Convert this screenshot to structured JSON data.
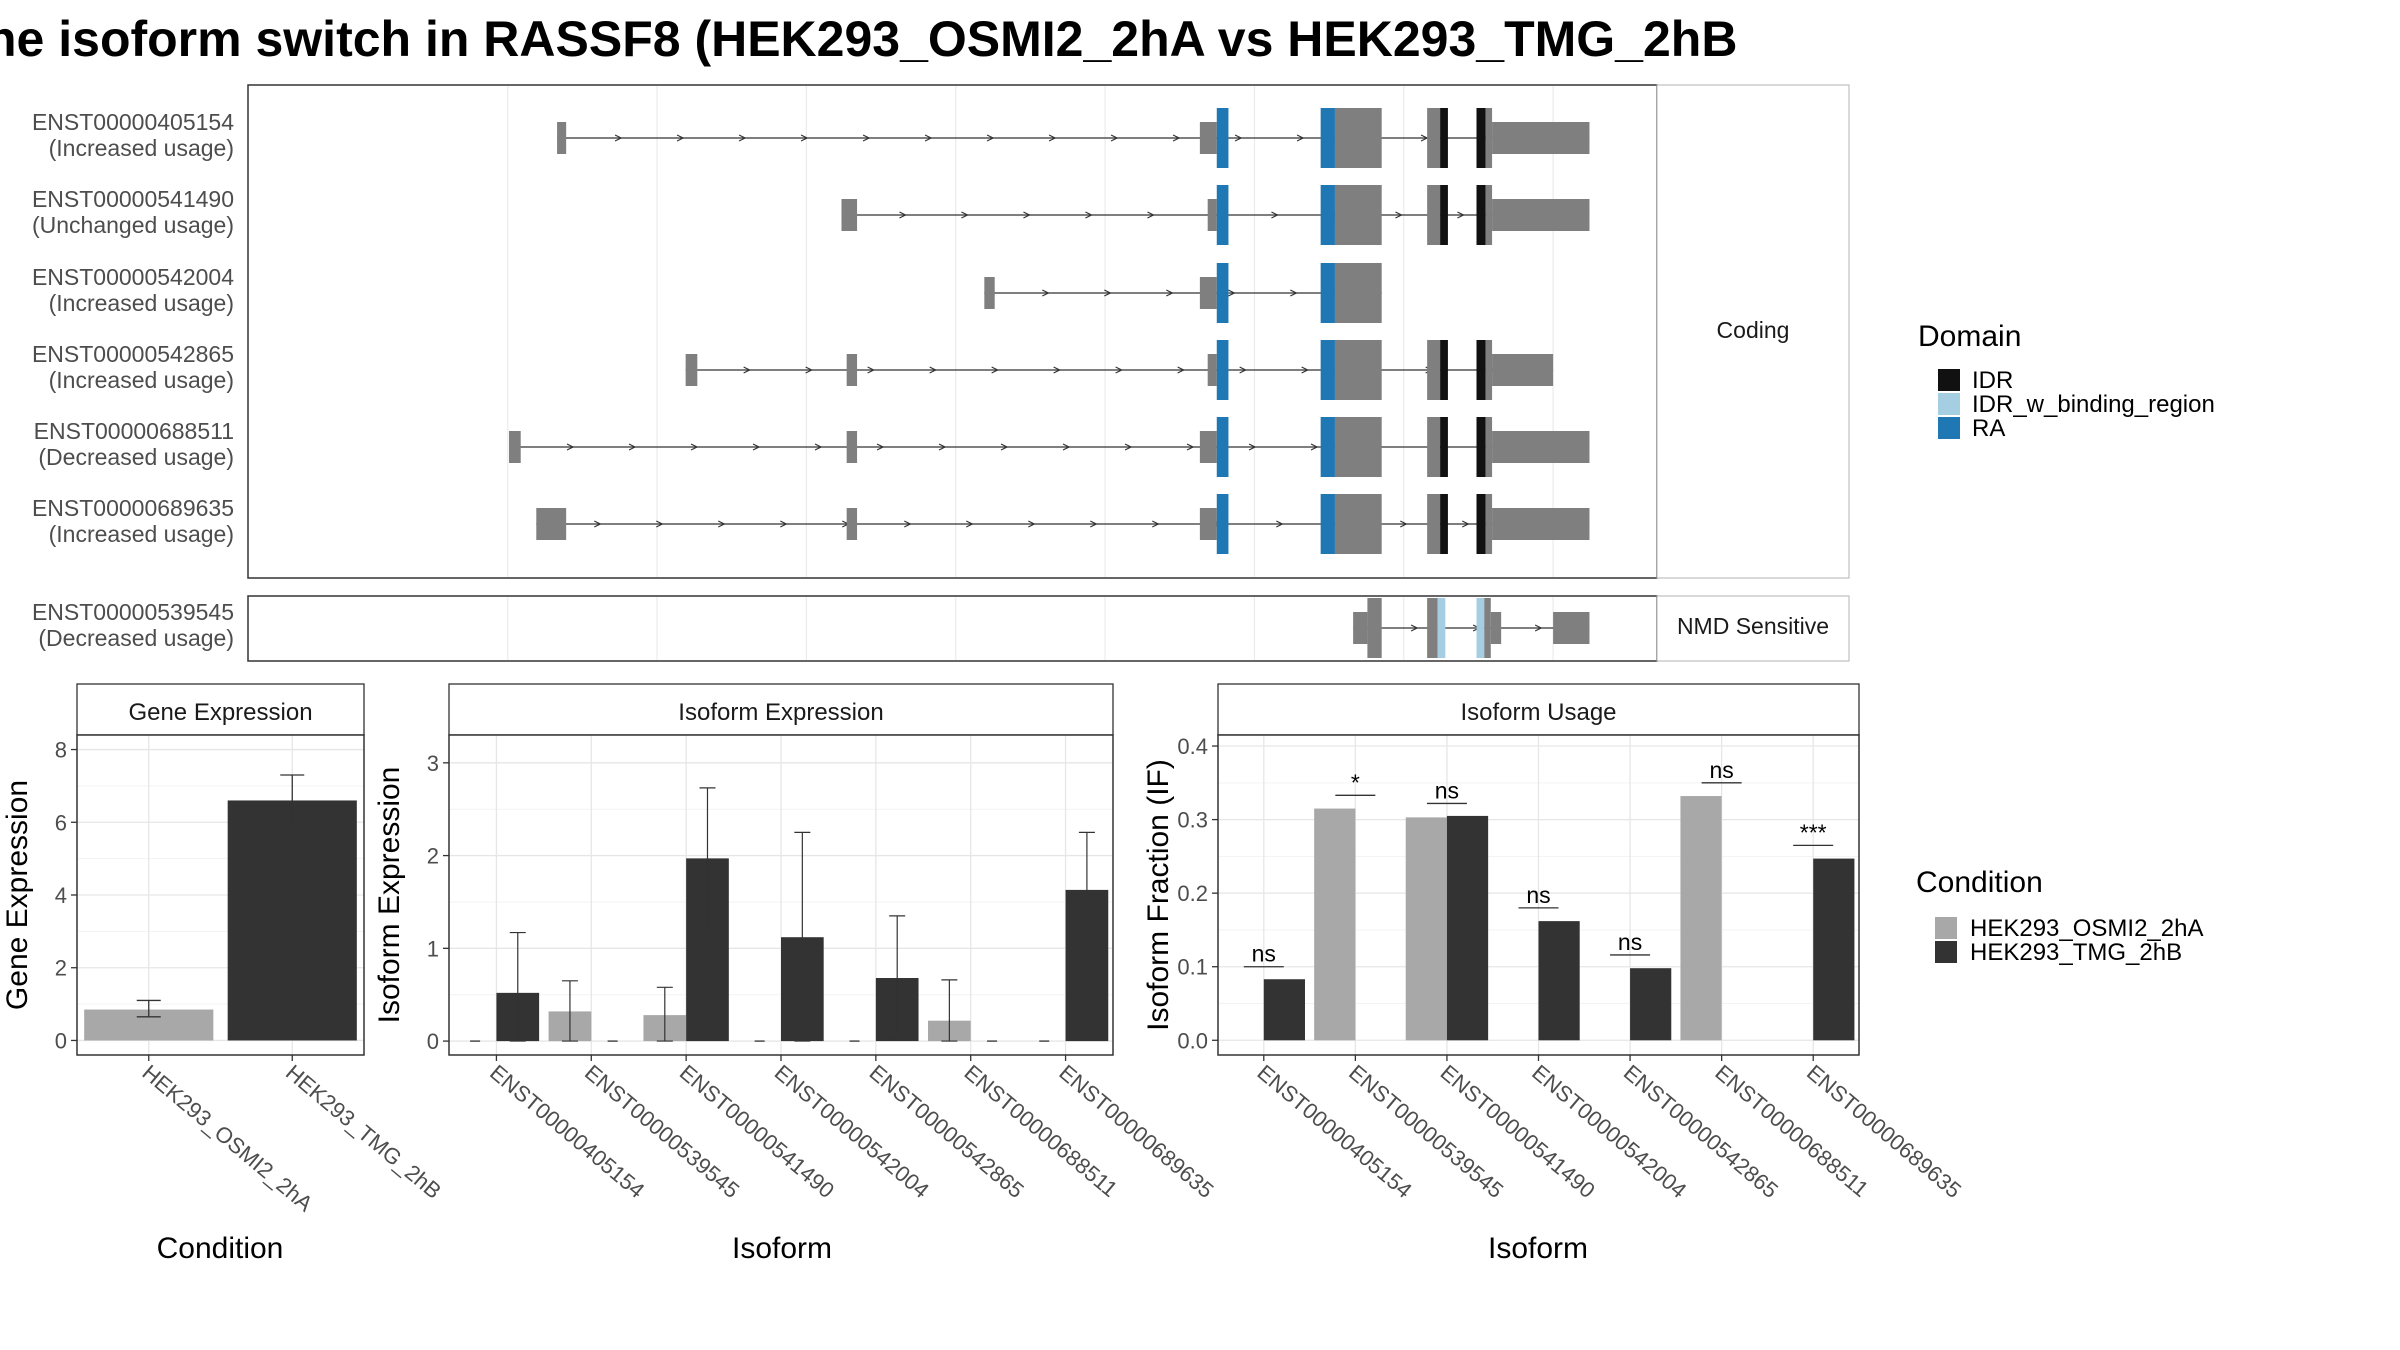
{
  "title": "he isoform switch in RASSF8 (HEK293_OSMI2_2hA vs HEK293_TMG_2hB",
  "colors": {
    "exon": "#7f7f7f",
    "IDR": "#111111",
    "IDR_w_binding_region": "#a6cee3",
    "RA": "#1f78b4",
    "HEK293_OSMI2_2hA": "#a8a8a8",
    "HEK293_TMG_2hB": "#333333"
  },
  "legend_domain": {
    "title": "Domain",
    "items": [
      {
        "key": "IDR",
        "label": "IDR"
      },
      {
        "key": "IDR_w_binding_region",
        "label": "IDR_w_binding_region"
      },
      {
        "key": "RA",
        "label": "RA"
      }
    ]
  },
  "legend_condition": {
    "title": "Condition",
    "items": [
      {
        "key": "HEK293_OSMI2_2hA",
        "label": "HEK293_OSMI2_2hA"
      },
      {
        "key": "HEK293_TMG_2hB",
        "label": "HEK293_TMG_2hB"
      }
    ]
  },
  "structure": {
    "strip_coding": "Coding",
    "strip_nmd": "NMD Sensitive",
    "transcripts": [
      {
        "id": "ENST00000405154",
        "usage": "(Increased usage)",
        "group": "coding"
      },
      {
        "id": "ENST00000541490",
        "usage": "(Unchanged usage)",
        "group": "coding"
      },
      {
        "id": "ENST00000542004",
        "usage": "(Increased usage)",
        "group": "coding"
      },
      {
        "id": "ENST00000542865",
        "usage": "(Increased usage)",
        "group": "coding"
      },
      {
        "id": "ENST00000688511",
        "usage": "(Decreased usage)",
        "group": "coding"
      },
      {
        "id": "ENST00000689635",
        "usage": "(Increased usage)",
        "group": "coding"
      },
      {
        "id": "ENST00000539545",
        "usage": "(Decreased usage)",
        "group": "nmd"
      }
    ]
  },
  "chart_data": [
    {
      "type": "bar",
      "title": "Gene Expression",
      "xlabel": "Condition",
      "ylabel": "Gene Expression",
      "ylim": [
        -0.4,
        8.4
      ],
      "yticks": [
        0,
        2,
        4,
        6,
        8
      ],
      "categories": [
        "HEK293_OSMI2_2hA",
        "HEK293_TMG_2hB"
      ],
      "values": [
        0.85,
        6.6
      ],
      "error": [
        [
          0.65,
          1.1
        ],
        [
          5.95,
          7.3
        ]
      ]
    },
    {
      "type": "bar",
      "title": "Isoform Expression",
      "xlabel": "Isoform",
      "ylabel": "Isoform Expression",
      "ylim": [
        -0.15,
        3.3
      ],
      "yticks": [
        0,
        1,
        2,
        3
      ],
      "categories": [
        "ENST00000405154",
        "ENST00000539545",
        "ENST00000541490",
        "ENST00000542004",
        "ENST00000542865",
        "ENST00000688511",
        "ENST00000689635"
      ],
      "series": [
        {
          "name": "HEK293_OSMI2_2hA",
          "values": [
            0.0,
            0.32,
            0.28,
            0.0,
            0.0,
            0.22,
            0.0
          ],
          "error": [
            null,
            [
              0.0,
              0.65
            ],
            [
              0.0,
              0.58
            ],
            null,
            null,
            [
              0.0,
              0.66
            ],
            null
          ]
        },
        {
          "name": "HEK293_TMG_2hB",
          "values": [
            0.52,
            0.0,
            1.97,
            1.12,
            0.68,
            0.0,
            1.63
          ],
          "error": [
            [
              0.0,
              1.17
            ],
            null,
            [
              1.22,
              2.73
            ],
            [
              0.0,
              2.25
            ],
            [
              0.02,
              1.35
            ],
            null,
            [
              1.02,
              2.25
            ]
          ]
        }
      ]
    },
    {
      "type": "bar",
      "title": "Isoform Usage",
      "xlabel": "Isoform",
      "ylabel": "Isoform Fraction (IF)",
      "ylim": [
        -0.02,
        0.415
      ],
      "yticks": [
        0.0,
        0.1,
        0.2,
        0.3,
        0.4
      ],
      "ytick_labels": [
        "0.0",
        "0.1",
        "0.2",
        "0.3",
        "0.4"
      ],
      "categories": [
        "ENST00000405154",
        "ENST00000539545",
        "ENST00000541490",
        "ENST00000542004",
        "ENST00000542865",
        "ENST00000688511",
        "ENST00000689635"
      ],
      "series": [
        {
          "name": "HEK293_OSMI2_2hA",
          "values": [
            0.0,
            0.315,
            0.303,
            0.0,
            0.0,
            0.332,
            0.0
          ]
        },
        {
          "name": "HEK293_TMG_2hB",
          "values": [
            0.083,
            0.0,
            0.305,
            0.162,
            0.098,
            0.0,
            0.247
          ]
        }
      ],
      "significance": [
        {
          "label": "ns",
          "y": 0.1
        },
        {
          "label": "*",
          "y": 0.333
        },
        {
          "label": "ns",
          "y": 0.322
        },
        {
          "label": "ns",
          "y": 0.18
        },
        {
          "label": "ns",
          "y": 0.116
        },
        {
          "label": "ns",
          "y": 0.35
        },
        {
          "label": "***",
          "y": 0.265
        }
      ]
    }
  ]
}
